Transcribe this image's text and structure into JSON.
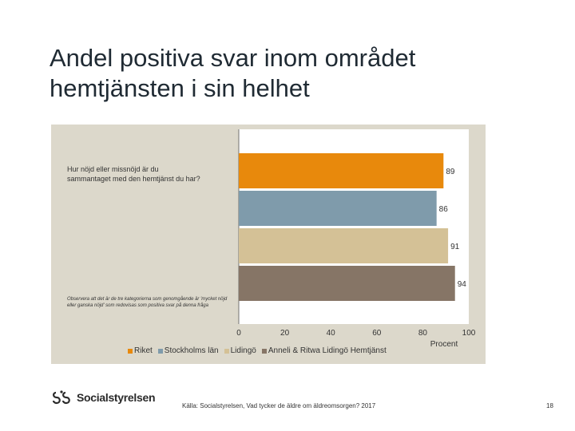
{
  "title": "Andel positiva svar inom området hemtjänsten i sin helhet",
  "question": "Hur nöjd eller missnöjd är du sammantaget med den hemtjänst du har?",
  "note": "Observera att det är de tre kategorierna som genomgående är 'mycket nöjd eller ganska nöjd' som redovisas som positiva svar på denna fråga",
  "source": "Källa: Socialstyrelsen, Vad tycker de äldre om äldreomsorgen? 2017",
  "page_number": "18",
  "logo_text": "Socialstyrelsen",
  "chart_data": {
    "type": "bar",
    "orientation": "horizontal",
    "xlabel": "Procent",
    "xlim": [
      0,
      100
    ],
    "xticks": [
      "0",
      "20",
      "40",
      "60",
      "80",
      "100"
    ],
    "grid": false,
    "legend_position": "bottom",
    "series": [
      {
        "name": "Riket",
        "value": 89,
        "color": "#e8890c"
      },
      {
        "name": "Stockholms län",
        "value": 86,
        "color": "#7f9bab"
      },
      {
        "name": "Lidingö",
        "value": 91,
        "color": "#d4c196"
      },
      {
        "name": "Anneli & Ritwa Lidingö Hemtjänst",
        "value": 94,
        "color": "#867566"
      }
    ]
  }
}
